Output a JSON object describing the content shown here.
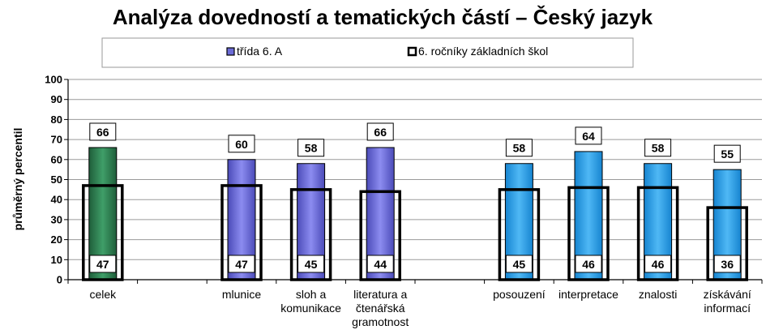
{
  "chart_data": {
    "type": "bar",
    "title": "Analýza dovedností a tematických částí – Český jazyk",
    "ylabel": "průměrný percentil",
    "xlabel": "",
    "ylim": [
      0,
      100
    ],
    "yticks": [
      0,
      10,
      20,
      30,
      40,
      50,
      60,
      70,
      80,
      90,
      100
    ],
    "grid": true,
    "legend_position": "top",
    "categories": [
      [
        "celek"
      ],
      [],
      [
        "mlunice"
      ],
      [
        "sloh a",
        "komunikace"
      ],
      [
        "literatura a",
        "čtenářská",
        "gramotnost"
      ],
      [],
      [
        "posouzení"
      ],
      [
        "interpretace"
      ],
      [
        "znalosti"
      ],
      [
        "získávání",
        "informací"
      ]
    ],
    "series": [
      {
        "name": "třída 6. A",
        "values": [
          66,
          null,
          60,
          58,
          66,
          null,
          58,
          64,
          58,
          55
        ],
        "colors": [
          "#2e7d4f",
          null,
          "#6b6bd6",
          "#6b6bd6",
          "#6b6bd6",
          null,
          "#2a9de8",
          "#2a9de8",
          "#2a9de8",
          "#2a9de8"
        ]
      },
      {
        "name": "6. ročníky základních škol",
        "values": [
          47,
          null,
          47,
          45,
          44,
          null,
          45,
          46,
          46,
          36
        ]
      }
    ]
  }
}
